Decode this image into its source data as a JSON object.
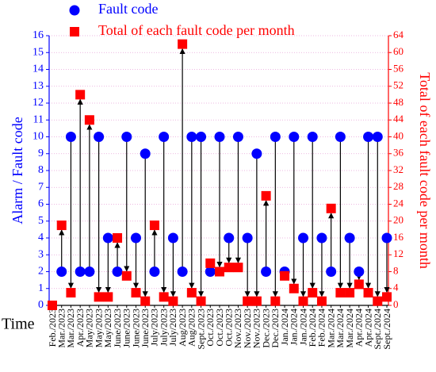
{
  "chart_data": {
    "type": "scatter",
    "xlabel": "Time",
    "ylabel": "Alarm / Fault code",
    "y2label": "Total of each fault code per month",
    "categories": [
      "Feb./2023",
      "Mar./2023",
      "Mar./2023",
      "Apr./2023",
      "May/2023",
      "May/2023",
      "May/2023",
      "June/2023",
      "June/2023",
      "June/2023",
      "June/2023",
      "July/2023",
      "July/2023",
      "July/2023",
      "Aug/2023",
      "Aug/2023",
      "Sept./2023",
      "Oct./2023",
      "Oct./2023",
      "Oct./2023",
      "Nov./2023",
      "Nov./2023",
      "Nov./2023",
      "Dec./2023",
      "Dec./2023",
      "Jan./2024",
      "Jan./2024",
      "Jan./2024",
      "Feb./2024",
      "Feb./2024",
      "Mar./2024",
      "Mar./2024",
      "Mar./2024",
      "Apr./2024",
      "Apr./2024",
      "Sept./2024",
      "Sept./2024"
    ],
    "series": [
      {
        "name": "Fault code",
        "color": "#0000ff",
        "marker": "circle",
        "values": [
          null,
          2,
          10,
          2,
          2,
          10,
          4,
          2,
          10,
          4,
          9,
          2,
          10,
          4,
          2,
          10,
          10,
          2,
          10,
          4,
          10,
          4,
          9,
          2,
          10,
          2,
          10,
          4,
          10,
          4,
          2,
          10,
          4,
          2,
          10,
          10,
          4
        ]
      },
      {
        "name": "Total of each fault code per month",
        "color": "#ff0000",
        "marker": "square",
        "axis": "y2",
        "values": [
          0,
          19,
          3,
          50,
          44,
          2,
          2,
          16,
          7,
          3,
          1,
          19,
          2,
          1,
          62,
          3,
          1,
          10,
          8,
          9,
          9,
          1,
          1,
          26,
          1,
          7,
          4,
          1,
          3,
          1,
          23,
          3,
          3,
          5,
          3,
          1,
          2
        ]
      }
    ],
    "ylim": [
      0,
      16
    ],
    "yticks": [
      0,
      1,
      2,
      3,
      4,
      5,
      6,
      7,
      8,
      9,
      10,
      11,
      12,
      13,
      14,
      15,
      16
    ],
    "y2lim": [
      0,
      64
    ],
    "y2ticks": [
      0,
      4,
      8,
      12,
      16,
      20,
      24,
      28,
      32,
      36,
      40,
      44,
      48,
      52,
      56,
      60,
      64
    ],
    "grid": true,
    "arrows": true
  }
}
